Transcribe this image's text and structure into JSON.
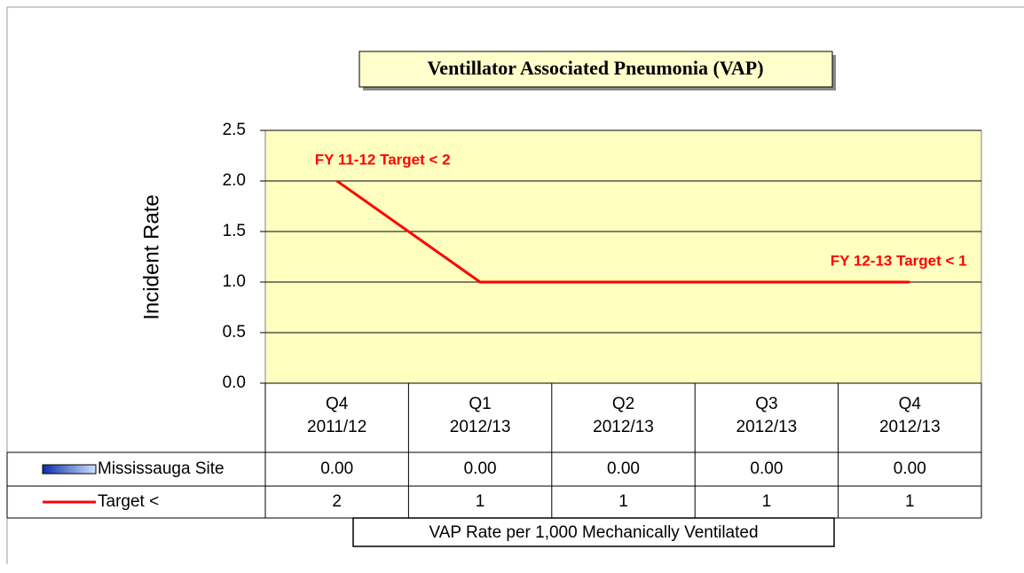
{
  "chart_data": {
    "type": "bar_line",
    "title": "Ventillator Associated Pneumonia (VAP)",
    "y_label": "Incident Rate",
    "x_label": "VAP Rate per 1,000 Mechanically Ventilated",
    "categories": [
      [
        "Q4",
        "2011/12"
      ],
      [
        "Q1",
        "2012/13"
      ],
      [
        "Q2",
        "2012/13"
      ],
      [
        "Q3",
        "2012/13"
      ],
      [
        "Q4",
        "2012/13"
      ]
    ],
    "series": [
      {
        "name": "Mississauga Site",
        "type": "bar",
        "color": "#3a6fd8",
        "values": [
          0,
          0,
          0,
          0,
          0
        ],
        "value_labels": [
          "0.00",
          "0.00",
          "0.00",
          "0.00",
          "0.00"
        ]
      },
      {
        "name": "Target <",
        "type": "line",
        "color": "#ff0000",
        "values": [
          2,
          1,
          1,
          1,
          1
        ]
      }
    ],
    "annotations": [
      {
        "text": "FY 11-12 Target < 2",
        "x": 0,
        "y": 2.2
      },
      {
        "text": "FY 12-13 Target < 1",
        "x": 3.6,
        "y": 1.2
      }
    ],
    "ylim": [
      0,
      2.5
    ],
    "yticks": [
      {
        "value": 0,
        "label": "0.0"
      },
      {
        "value": 0.5,
        "label": "0.5"
      },
      {
        "value": 1,
        "label": "1.0"
      },
      {
        "value": 1.5,
        "label": "1.5"
      },
      {
        "value": 2,
        "label": "2.0"
      },
      {
        "value": 2.5,
        "label": "2.5"
      }
    ],
    "grid": true
  }
}
